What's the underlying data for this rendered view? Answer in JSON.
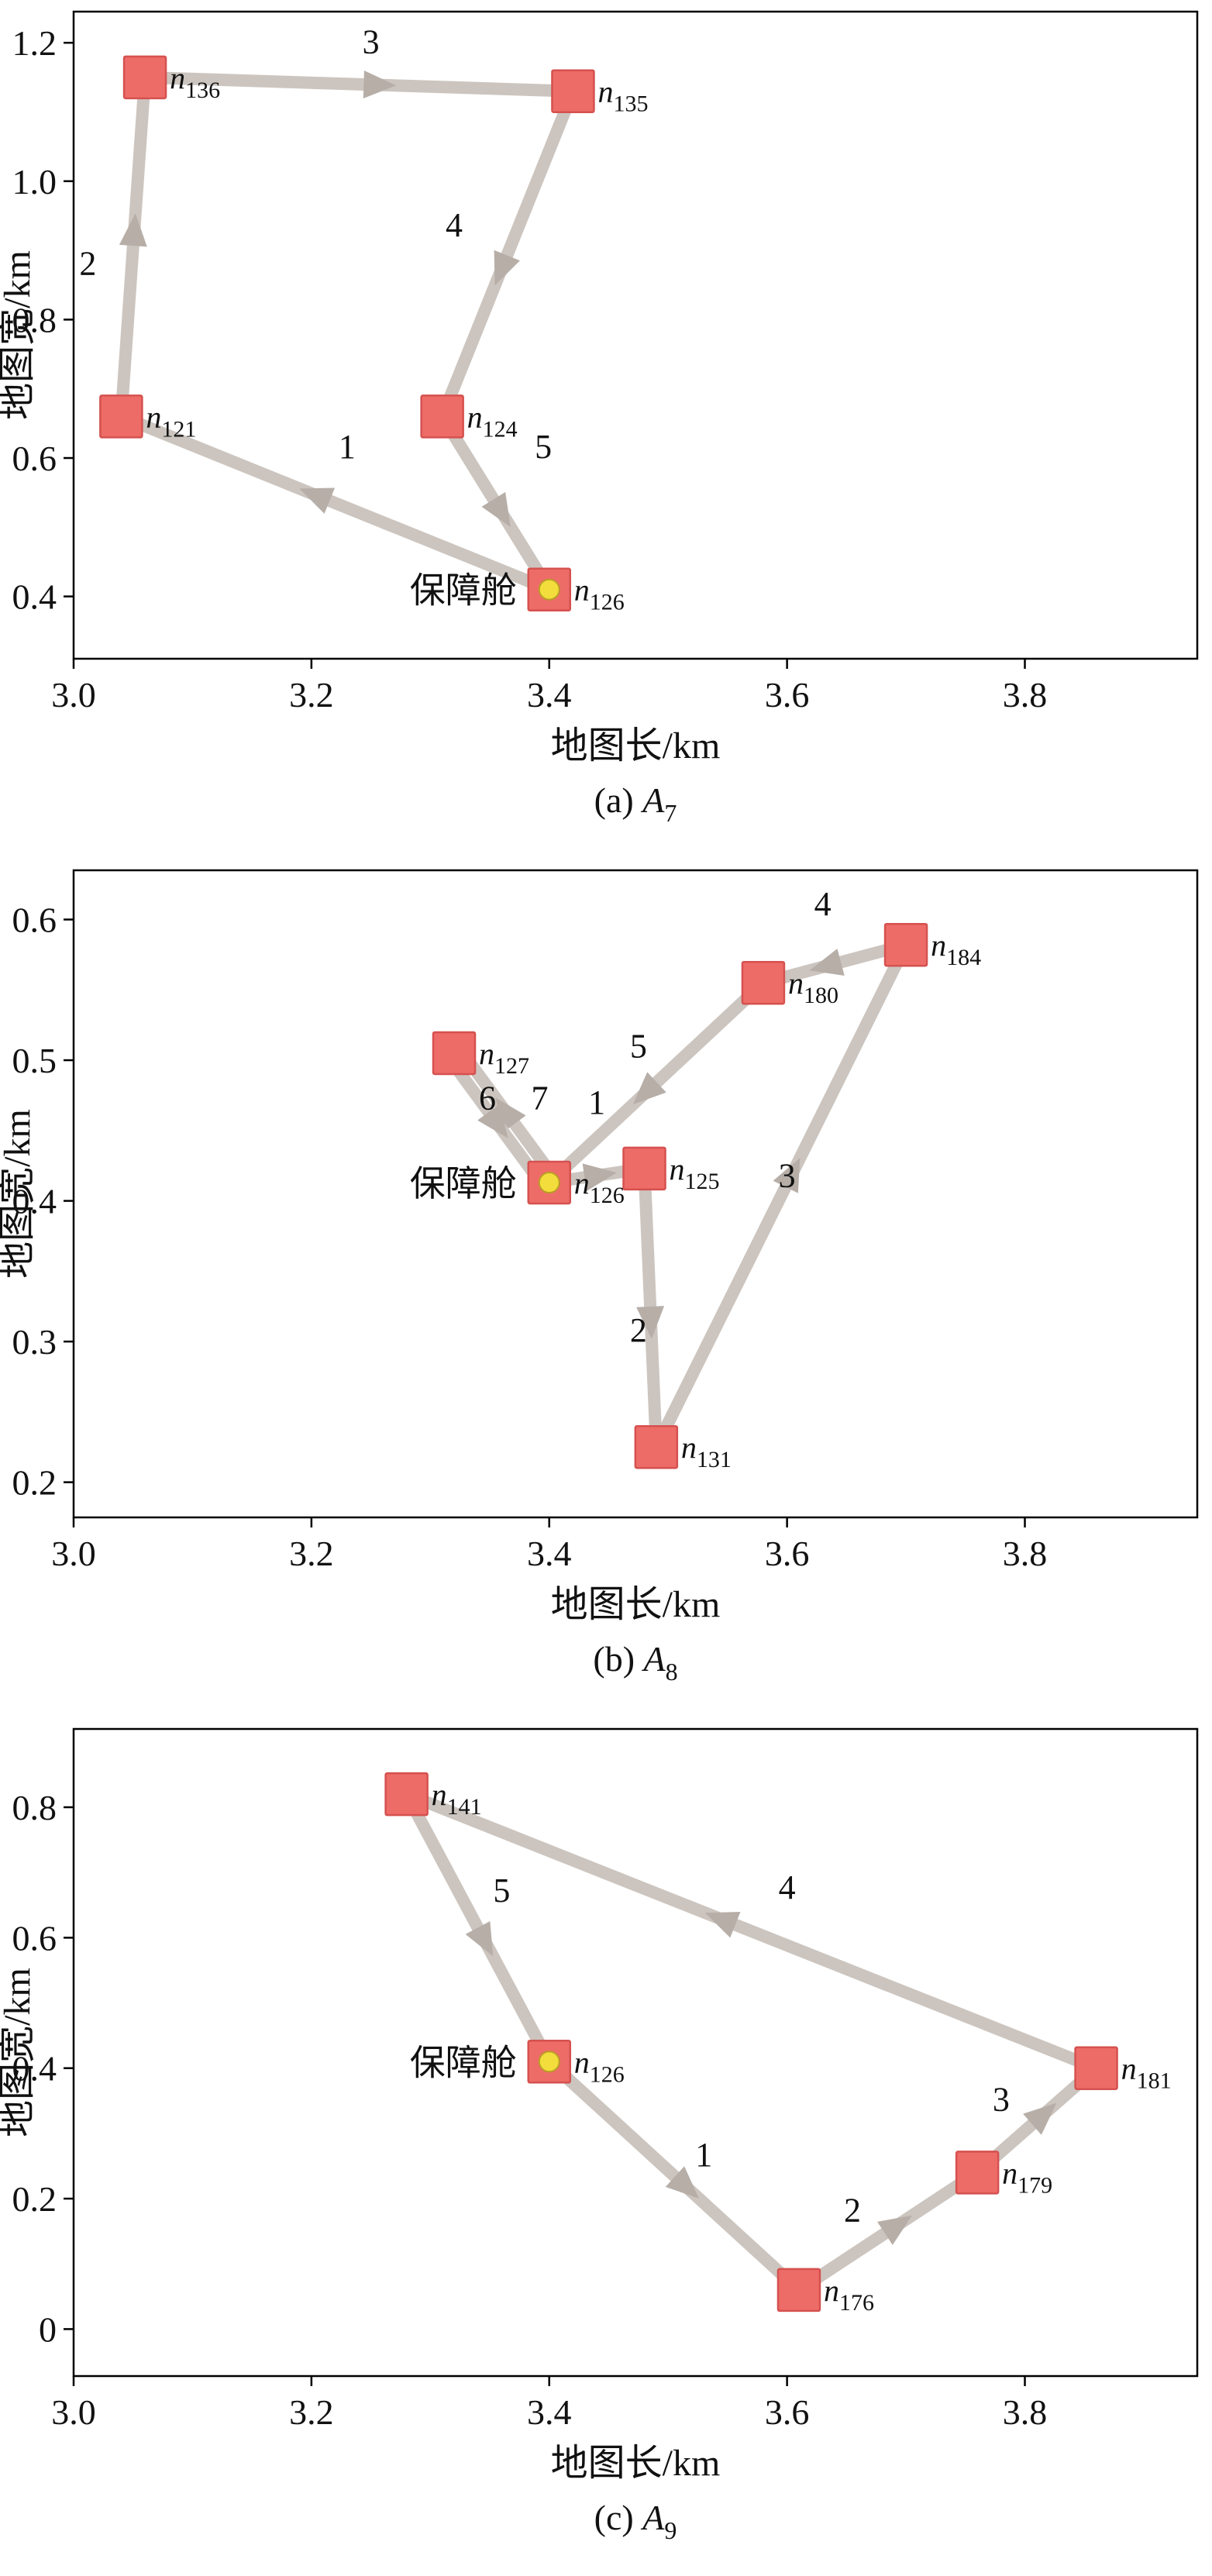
{
  "figure": {
    "description": "Three vehicle-route subplots over map coordinates",
    "depot_label": "保障舱"
  },
  "style": {
    "node_fill": "#ee6c68",
    "node_stroke": "#d5514f",
    "edge_color": "#ccc5bf",
    "arrow_color": "#b7aea8",
    "depot_dot_fill": "#f3dd3c",
    "depot_dot_stroke": "#bb9d25",
    "axis_color": "#000000",
    "text_color": "#111111"
  },
  "chart_data": [
    {
      "type": "scatter",
      "caption": {
        "prefix": "(a)",
        "symbol": "A",
        "subscript": "7"
      },
      "xlabel": "地图长/km",
      "ylabel": "地图宽/km",
      "xlim": [
        3.0,
        3.945
      ],
      "ylim": [
        0.31,
        1.245
      ],
      "xticks": [
        3.0,
        3.2,
        3.4,
        3.6,
        3.8
      ],
      "yticks": [
        0.4,
        0.6,
        0.8,
        1.0,
        1.2
      ],
      "grid": false,
      "nodes": [
        {
          "id": "n136",
          "label": "n",
          "sub": "136",
          "x": 3.06,
          "y": 1.15
        },
        {
          "id": "n135",
          "label": "n",
          "sub": "135",
          "x": 3.42,
          "y": 1.13
        },
        {
          "id": "n121",
          "label": "n",
          "sub": "121",
          "x": 3.04,
          "y": 0.66
        },
        {
          "id": "n124",
          "label": "n",
          "sub": "124",
          "x": 3.31,
          "y": 0.66
        },
        {
          "id": "n126",
          "label": "n",
          "sub": "126",
          "x": 3.4,
          "y": 0.41,
          "depot": true
        }
      ],
      "edges": [
        {
          "order": "1",
          "from": "n126",
          "to": "n121",
          "label_x": 3.23,
          "label_y": 0.6
        },
        {
          "order": "2",
          "from": "n121",
          "to": "n136",
          "label_x": 3.012,
          "label_y": 0.865
        },
        {
          "order": "3",
          "from": "n136",
          "to": "n135",
          "label_x": 3.25,
          "label_y": 1.185
        },
        {
          "order": "4",
          "from": "n135",
          "to": "n124",
          "label_x": 3.32,
          "label_y": 0.92
        },
        {
          "order": "5",
          "from": "n124",
          "to": "n126",
          "label_x": 3.395,
          "label_y": 0.6
        }
      ]
    },
    {
      "type": "scatter",
      "caption": {
        "prefix": "(b)",
        "symbol": "A",
        "subscript": "8"
      },
      "xlabel": "地图长/km",
      "ylabel": "地图宽/km",
      "xlim": [
        3.0,
        3.945
      ],
      "ylim": [
        0.175,
        0.635
      ],
      "xticks": [
        3.0,
        3.2,
        3.4,
        3.6,
        3.8
      ],
      "yticks": [
        0.2,
        0.3,
        0.4,
        0.5,
        0.6
      ],
      "grid": false,
      "nodes": [
        {
          "id": "n127",
          "label": "n",
          "sub": "127",
          "x": 3.32,
          "y": 0.505
        },
        {
          "id": "n180",
          "label": "n",
          "sub": "180",
          "x": 3.58,
          "y": 0.555
        },
        {
          "id": "n184",
          "label": "n",
          "sub": "184",
          "x": 3.7,
          "y": 0.582
        },
        {
          "id": "n126",
          "label": "n",
          "sub": "126",
          "x": 3.4,
          "y": 0.413,
          "depot": true
        },
        {
          "id": "n125",
          "label": "n",
          "sub": "125",
          "x": 3.48,
          "y": 0.423
        },
        {
          "id": "n131",
          "label": "n",
          "sub": "131",
          "x": 3.49,
          "y": 0.225
        }
      ],
      "edges": [
        {
          "order": "1",
          "from": "n126",
          "to": "n125",
          "label_x": 3.44,
          "label_y": 0.462,
          "t": 0.5
        },
        {
          "order": "2",
          "from": "n125",
          "to": "n131",
          "label_x": 3.475,
          "label_y": 0.3
        },
        {
          "order": "3",
          "from": "n131",
          "to": "n184",
          "label_x": 3.6,
          "label_y": 0.41
        },
        {
          "order": "4",
          "from": "n184",
          "to": "n180",
          "label_x": 3.63,
          "label_y": 0.603
        },
        {
          "order": "5",
          "from": "n180",
          "to": "n126",
          "label_x": 3.475,
          "label_y": 0.502
        },
        {
          "order": "6",
          "from": "n126",
          "to": "n127",
          "label_x": 3.348,
          "label_y": 0.465,
          "offset": 9,
          "t": 0.5
        },
        {
          "order": "7",
          "from": "n127",
          "to": "n126",
          "label_x": 3.392,
          "label_y": 0.465,
          "offset": 9,
          "t": 0.5
        }
      ]
    },
    {
      "type": "scatter",
      "caption": {
        "prefix": "(c)",
        "symbol": "A",
        "subscript": "9"
      },
      "xlabel": "地图长/km",
      "ylabel": "地图宽/km",
      "xlim": [
        3.0,
        3.945
      ],
      "ylim": [
        -0.072,
        0.92
      ],
      "xticks": [
        3.0,
        3.2,
        3.4,
        3.6,
        3.8
      ],
      "yticks": [
        0,
        0.2,
        0.4,
        0.6,
        0.8
      ],
      "grid": false,
      "nodes": [
        {
          "id": "n141",
          "label": "n",
          "sub": "141",
          "x": 3.28,
          "y": 0.82
        },
        {
          "id": "n126",
          "label": "n",
          "sub": "126",
          "x": 3.4,
          "y": 0.41,
          "depot": true
        },
        {
          "id": "n176",
          "label": "n",
          "sub": "176",
          "x": 3.61,
          "y": 0.06
        },
        {
          "id": "n179",
          "label": "n",
          "sub": "179",
          "x": 3.76,
          "y": 0.24
        },
        {
          "id": "n181",
          "label": "n",
          "sub": "181",
          "x": 3.86,
          "y": 0.4
        }
      ],
      "edges": [
        {
          "order": "1",
          "from": "n126",
          "to": "n176",
          "label_x": 3.53,
          "label_y": 0.25
        },
        {
          "order": "2",
          "from": "n176",
          "to": "n179",
          "label_x": 3.655,
          "label_y": 0.165
        },
        {
          "order": "3",
          "from": "n179",
          "to": "n181",
          "label_x": 3.78,
          "label_y": 0.335
        },
        {
          "order": "4",
          "from": "n181",
          "to": "n141",
          "label_x": 3.6,
          "label_y": 0.66
        },
        {
          "order": "5",
          "from": "n141",
          "to": "n126",
          "label_x": 3.36,
          "label_y": 0.655
        }
      ]
    }
  ]
}
